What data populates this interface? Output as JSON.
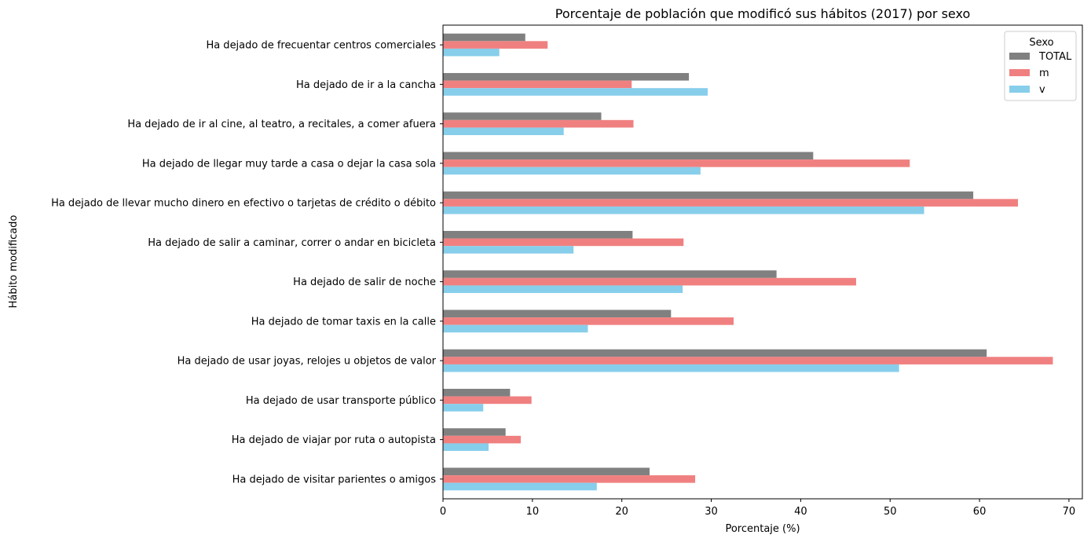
{
  "chart_data": {
    "type": "bar",
    "orientation": "horizontal",
    "title": "Porcentaje de población que modificó sus hábitos (2017) por sexo",
    "xlabel": "Porcentaje (%)",
    "ylabel": "Hábito modificado",
    "xlim": [
      0,
      71.5
    ],
    "xticks": [
      "0",
      "10",
      "20",
      "30",
      "40",
      "50",
      "60",
      "70"
    ],
    "grid": false,
    "legend": {
      "title": "Sexo",
      "position": "top-right"
    },
    "categories": [
      "Ha dejado de frecuentar centros comerciales",
      "Ha dejado de ir a la cancha",
      "Ha dejado de ir al cine, al teatro, a recitales, a comer afuera",
      "Ha dejado de llegar muy tarde a casa o dejar la casa sola",
      "Ha dejado de llevar mucho dinero en efectivo o tarjetas de crédito o débito",
      "Ha dejado de salir a caminar, correr o andar en bicicleta",
      "Ha dejado de salir de noche",
      "Ha dejado de tomar taxis en la calle",
      "Ha dejado de usar joyas, relojes u objetos de valor",
      "Ha dejado de usar transporte público",
      "Ha dejado de viajar por ruta o autopista",
      "Ha dejado de visitar parientes o amigos"
    ],
    "series": [
      {
        "name": "TOTAL",
        "color": "#808080",
        "values": [
          9.2,
          27.5,
          17.7,
          41.4,
          59.3,
          21.2,
          37.3,
          25.5,
          60.8,
          7.5,
          7.0,
          23.1
        ]
      },
      {
        "name": "m",
        "color": "#f08080",
        "values": [
          11.7,
          21.1,
          21.3,
          52.2,
          64.3,
          26.9,
          46.2,
          32.5,
          68.2,
          9.9,
          8.7,
          28.2
        ]
      },
      {
        "name": "v",
        "color": "#87ceeb",
        "values": [
          6.3,
          29.6,
          13.5,
          28.8,
          53.8,
          14.6,
          26.8,
          16.2,
          51.0,
          4.5,
          5.1,
          17.2
        ]
      }
    ]
  }
}
